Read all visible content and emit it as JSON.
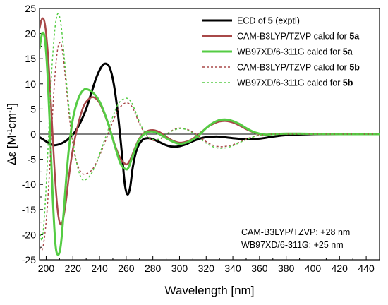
{
  "chart_data": {
    "type": "line",
    "xlabel": "Wavelength [nm]",
    "ylabel": {
      "main": "Δε [M",
      "sup1": "-1",
      "mid": "cm",
      "sup2": "-1",
      "end": "]"
    },
    "xlim": [
      195,
      450
    ],
    "ylim": [
      -25,
      25
    ],
    "xticks": [
      200,
      220,
      240,
      260,
      280,
      300,
      320,
      340,
      360,
      380,
      400,
      420,
      440
    ],
    "yticks": [
      -25,
      -20,
      -15,
      -10,
      -5,
      0,
      5,
      10,
      15,
      20,
      25
    ],
    "legend_position": "top-right",
    "series": [
      {
        "legend": {
          "prefix": "ECD of ",
          "bold": "5",
          "suffix": " (exptl)"
        },
        "color": "#000000",
        "width": 3,
        "dash": "",
        "x": [
          195,
          198,
          202,
          206,
          210,
          214,
          218,
          222,
          226,
          230,
          234,
          238,
          242,
          245,
          248,
          251,
          254,
          257,
          259,
          261,
          263,
          265,
          268,
          272,
          276,
          280,
          285,
          290,
          295,
          300,
          305,
          310,
          315,
          320,
          325,
          330,
          340,
          350,
          360,
          370,
          380,
          400,
          420,
          450
        ],
        "y": [
          -0.6,
          -1.1,
          -1.8,
          -2.2,
          -2.0,
          -1.5,
          -0.6,
          0.6,
          2.5,
          5.0,
          8.3,
          11.5,
          13.6,
          14.0,
          13.0,
          9.5,
          3.5,
          -4.5,
          -10.0,
          -12.0,
          -10.5,
          -6.5,
          -3.0,
          -1.2,
          -0.8,
          -1.0,
          -1.6,
          -2.2,
          -2.5,
          -2.4,
          -2.0,
          -1.4,
          -0.9,
          -0.6,
          -0.5,
          -0.5,
          -0.8,
          -1.0,
          -0.9,
          -0.5,
          -0.2,
          0.0,
          0.0,
          0.0
        ]
      },
      {
        "legend": {
          "prefix": "CAM-B3LYP/TZVP calcd for ",
          "bold": "5a",
          "suffix": ""
        },
        "color": "#a84848",
        "width": 2.5,
        "dash": "",
        "x": [
          195,
          197,
          199,
          201,
          203,
          205,
          207,
          209,
          211,
          213,
          215,
          217,
          220,
          224,
          228,
          232,
          236,
          240,
          244,
          248,
          252,
          256,
          260,
          262,
          264,
          267,
          270,
          275,
          280,
          285,
          290,
          295,
          300,
          305,
          310,
          315,
          320,
          325,
          330,
          335,
          340,
          345,
          350,
          355,
          360,
          365,
          370,
          380,
          390,
          400,
          420,
          450
        ],
        "y": [
          21.0,
          23.0,
          22.0,
          17.0,
          9.0,
          -1.0,
          -10.0,
          -16.0,
          -18.0,
          -16.5,
          -13.0,
          -8.5,
          -3.0,
          2.0,
          5.5,
          7.0,
          7.3,
          6.2,
          3.8,
          0.8,
          -2.5,
          -5.0,
          -6.0,
          -5.6,
          -4.5,
          -2.5,
          -0.8,
          0.5,
          0.8,
          0.4,
          -0.5,
          -1.3,
          -1.7,
          -1.5,
          -0.9,
          0.1,
          1.2,
          2.0,
          2.5,
          2.6,
          2.3,
          1.7,
          1.0,
          0.4,
          0.0,
          -0.1,
          0.0,
          0.1,
          0.1,
          0.05,
          0.0,
          0.0
        ]
      },
      {
        "legend": {
          "prefix": "WB97XD/6-311G  calcd for ",
          "bold": "5a",
          "suffix": ""
        },
        "color": "#55cc44",
        "width": 3,
        "dash": "",
        "x": [
          195,
          197,
          199,
          201,
          203,
          205,
          207,
          209,
          211,
          213,
          215,
          217,
          220,
          224,
          228,
          232,
          236,
          240,
          244,
          248,
          252,
          256,
          260,
          262,
          264,
          267,
          270,
          275,
          280,
          285,
          290,
          295,
          300,
          305,
          310,
          315,
          320,
          325,
          330,
          335,
          340,
          345,
          350,
          355,
          360,
          365,
          370,
          380,
          390,
          400,
          420,
          450
        ],
        "y": [
          17.0,
          20.0,
          19.0,
          12.0,
          0.0,
          -13.0,
          -22.0,
          -24.0,
          -22.0,
          -16.0,
          -9.0,
          -3.0,
          3.0,
          7.0,
          8.8,
          8.8,
          8.0,
          6.5,
          4.0,
          0.8,
          -2.8,
          -6.0,
          -7.0,
          -6.5,
          -5.0,
          -2.8,
          -1.0,
          0.3,
          0.5,
          0.0,
          -0.8,
          -1.5,
          -1.9,
          -1.7,
          -1.1,
          -0.1,
          1.2,
          2.2,
          2.8,
          2.9,
          2.6,
          2.0,
          1.2,
          0.5,
          0.1,
          -0.1,
          0.0,
          0.1,
          0.1,
          0.05,
          0.0,
          0.0
        ]
      },
      {
        "legend": {
          "prefix": "CAM-B3LYP/TZVP calcd for ",
          "bold": "5b",
          "suffix": ""
        },
        "color": "#a84848",
        "width": 1.5,
        "dash": "3,3",
        "x": [
          195,
          197,
          199,
          201,
          203,
          205,
          207,
          209,
          211,
          213,
          215,
          218,
          221,
          224,
          227,
          230,
          234,
          238,
          242,
          246,
          250,
          254,
          258,
          261,
          264,
          267,
          270,
          274,
          278,
          282,
          286,
          290,
          295,
          300,
          305,
          310,
          315,
          320,
          325,
          330,
          335,
          340,
          345,
          350,
          355,
          360,
          370,
          380,
          400,
          450
        ],
        "y": [
          -22.5,
          -23.0,
          -20.0,
          -14.0,
          -5.0,
          5.0,
          13.0,
          17.5,
          18.0,
          15.0,
          9.5,
          2.0,
          -3.5,
          -6.5,
          -7.8,
          -7.9,
          -7.2,
          -5.5,
          -3.0,
          -0.3,
          2.5,
          4.8,
          6.0,
          6.2,
          5.6,
          4.0,
          2.0,
          0.2,
          -1.0,
          -1.3,
          -0.9,
          -0.1,
          0.8,
          1.2,
          1.0,
          0.4,
          -0.5,
          -1.5,
          -2.2,
          -2.5,
          -2.4,
          -2.1,
          -1.6,
          -1.0,
          -0.5,
          -0.2,
          0.0,
          0.0,
          0.0,
          0.0
        ]
      },
      {
        "legend": {
          "prefix": "WB97XD/6-311G  calcd for ",
          "bold": "5b",
          "suffix": ""
        },
        "color": "#55cc44",
        "width": 1.5,
        "dash": "3,3",
        "x": [
          195,
          197,
          199,
          201,
          203,
          205,
          207,
          209,
          211,
          213,
          215,
          218,
          221,
          224,
          227,
          230,
          234,
          238,
          242,
          246,
          250,
          254,
          258,
          261,
          264,
          267,
          270,
          274,
          278,
          282,
          286,
          290,
          295,
          300,
          305,
          310,
          315,
          320,
          325,
          330,
          335,
          340,
          345,
          350,
          355,
          360,
          370,
          380,
          400,
          450
        ],
        "y": [
          -19.0,
          -21.0,
          -15.0,
          -5.0,
          7.0,
          16.0,
          22.0,
          24.0,
          22.0,
          17.0,
          11.0,
          3.0,
          -3.0,
          -7.0,
          -9.0,
          -9.0,
          -7.8,
          -5.5,
          -2.5,
          0.5,
          3.5,
          6.0,
          7.0,
          7.1,
          6.3,
          4.5,
          2.4,
          0.3,
          -0.8,
          -1.1,
          -0.8,
          0.0,
          0.7,
          1.1,
          0.9,
          0.2,
          -0.8,
          -1.8,
          -2.5,
          -2.8,
          -2.7,
          -2.3,
          -1.7,
          -1.1,
          -0.6,
          -0.2,
          0.0,
          0.0,
          0.0,
          0.0
        ]
      }
    ],
    "annotations": [
      "CAM-B3LYP/TZVP: +28 nm",
      "WB97XD/6-311G: +25 nm"
    ]
  }
}
